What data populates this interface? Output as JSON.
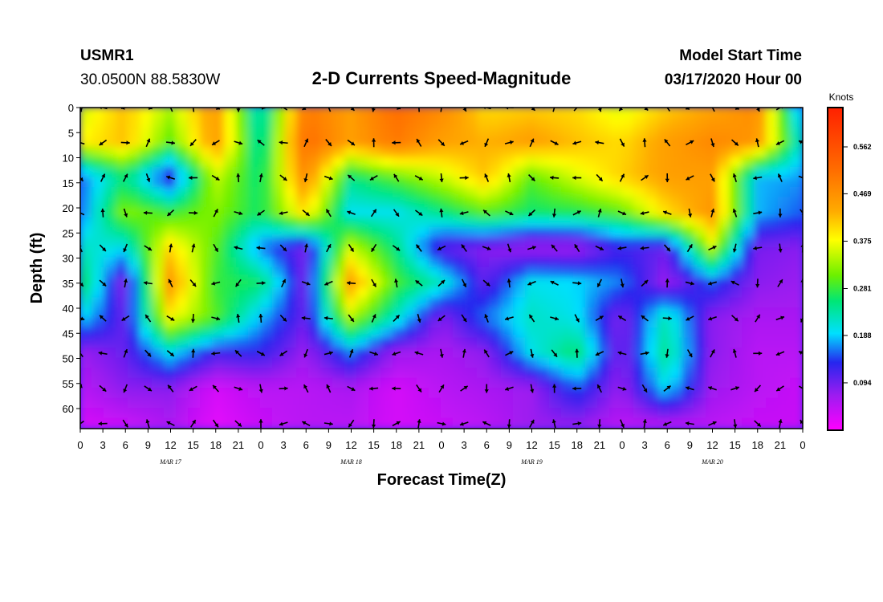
{
  "header": {
    "station": "USMR1",
    "location": "30.0500N 88.5830W",
    "title": "2-D Currents Speed-Magnitude",
    "model_label": "Model Start Time",
    "model_time": "03/17/2020 Hour 00"
  },
  "colorbar": {
    "unit": "Knots",
    "labels": [
      "0.562",
      "0.469",
      "0.375",
      "0.281",
      "0.188",
      "0.094"
    ],
    "values": [
      0.562,
      0.469,
      0.375,
      0.281,
      0.188,
      0.094
    ],
    "range": [
      0,
      0.64
    ],
    "colors": [
      "#ff00ff",
      "#9b1cf0",
      "#2626ee",
      "#00e0ff",
      "#00e676",
      "#6cf000",
      "#ffff00",
      "#ffaa00",
      "#ff7000",
      "#ff2000"
    ]
  },
  "chart_data": {
    "type": "heatmap",
    "xlabel": "Forecast Time(Z)",
    "ylabel": "Depth (ft)",
    "x_tick_labels": [
      "0",
      "3",
      "6",
      "9",
      "12",
      "15",
      "18",
      "21",
      "0",
      "3",
      "6",
      "9",
      "12",
      "15",
      "18",
      "21",
      "0",
      "3",
      "6",
      "9",
      "12",
      "15",
      "18",
      "21",
      "0",
      "3",
      "6",
      "9",
      "12",
      "15",
      "18",
      "21",
      "0"
    ],
    "date_labels": [
      "MAR 17",
      "MAR 18",
      "MAR 19",
      "MAR 20"
    ],
    "y_tick_labels": [
      "0",
      "5",
      "10",
      "15",
      "20",
      "25",
      "30",
      "35",
      "40",
      "45",
      "50",
      "55",
      "60"
    ],
    "xlim": [
      0,
      96
    ],
    "ylim": [
      0,
      64
    ],
    "value_range": [
      0,
      0.64
    ],
    "grid": false,
    "depths": [
      0,
      7,
      14,
      21,
      28,
      35,
      42,
      49,
      56,
      63
    ],
    "times": [
      0,
      6,
      12,
      18,
      24,
      30,
      36,
      42,
      48,
      54,
      60,
      66,
      72,
      78,
      84,
      90,
      96
    ],
    "speed": [
      [
        0.35,
        0.42,
        0.34,
        0.46,
        0.2,
        0.5,
        0.45,
        0.52,
        0.48,
        0.4,
        0.41,
        0.4,
        0.36,
        0.41,
        0.44,
        0.48,
        0.15
      ],
      [
        0.38,
        0.42,
        0.3,
        0.46,
        0.22,
        0.52,
        0.45,
        0.5,
        0.45,
        0.43,
        0.45,
        0.42,
        0.4,
        0.45,
        0.48,
        0.46,
        0.2
      ],
      [
        0.15,
        0.25,
        0.11,
        0.35,
        0.25,
        0.48,
        0.25,
        0.3,
        0.35,
        0.42,
        0.3,
        0.36,
        0.41,
        0.45,
        0.45,
        0.18,
        0.17
      ],
      [
        0.15,
        0.32,
        0.28,
        0.32,
        0.26,
        0.4,
        0.2,
        0.2,
        0.25,
        0.3,
        0.26,
        0.27,
        0.3,
        0.4,
        0.46,
        0.18,
        0.15
      ],
      [
        0.22,
        0.2,
        0.4,
        0.3,
        0.16,
        0.09,
        0.35,
        0.25,
        0.1,
        0.08,
        0.06,
        0.06,
        0.12,
        0.1,
        0.35,
        0.09,
        0.08
      ],
      [
        0.28,
        0.08,
        0.46,
        0.28,
        0.26,
        0.09,
        0.45,
        0.29,
        0.22,
        0.1,
        0.2,
        0.19,
        0.16,
        0.07,
        0.15,
        0.08,
        0.07
      ],
      [
        0.2,
        0.1,
        0.38,
        0.3,
        0.18,
        0.1,
        0.34,
        0.22,
        0.08,
        0.16,
        0.22,
        0.2,
        0.08,
        0.23,
        0.08,
        0.06,
        0.06
      ],
      [
        0.07,
        0.1,
        0.2,
        0.12,
        0.13,
        0.07,
        0.16,
        0.07,
        0.06,
        0.08,
        0.2,
        0.26,
        0.08,
        0.25,
        0.08,
        0.05,
        0.05
      ],
      [
        0.05,
        0.08,
        0.08,
        0.03,
        0.05,
        0.05,
        0.06,
        0.03,
        0.05,
        0.06,
        0.07,
        0.15,
        0.07,
        0.2,
        0.07,
        0.05,
        0.04
      ],
      [
        0.03,
        0.04,
        0.06,
        0.02,
        0.04,
        0.05,
        0.05,
        0.03,
        0.04,
        0.05,
        0.07,
        0.08,
        0.05,
        0.06,
        0.05,
        0.04,
        0.04
      ]
    ]
  }
}
